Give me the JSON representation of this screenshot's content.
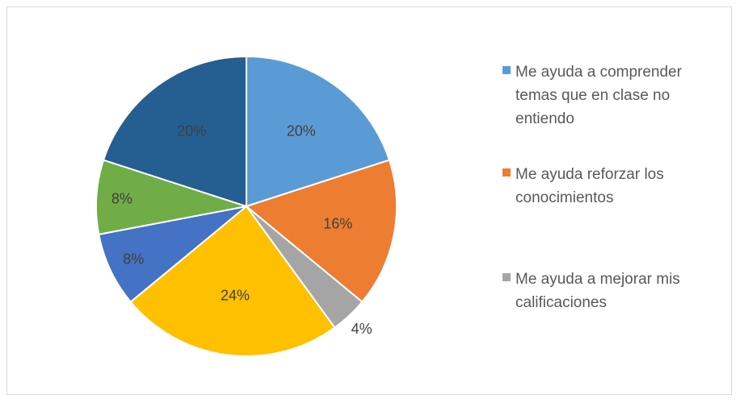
{
  "chart_data": {
    "type": "pie",
    "title": "",
    "slices": [
      {
        "label": "Me ayuda a comprender temas que en clase no entiendo",
        "value": 20,
        "display": "20%",
        "color": "#5B9BD5"
      },
      {
        "label": "Me ayuda reforzar los conocimientos",
        "value": 16,
        "display": "16%",
        "color": "#ED7D31"
      },
      {
        "label": "Me ayuda a mejorar mis calificaciones",
        "value": 4,
        "display": "4%",
        "color": "#A5A5A5"
      },
      {
        "label": "",
        "value": 24,
        "display": "24%",
        "color": "#FFC000"
      },
      {
        "label": "",
        "value": 8,
        "display": "8%",
        "color": "#4472C4"
      },
      {
        "label": "",
        "value": 8,
        "display": "8%",
        "color": "#70AD47"
      },
      {
        "label": "",
        "value": 20,
        "display": "20%",
        "color": "#255E91"
      }
    ],
    "legend_position": "right"
  },
  "legend": {
    "items": [
      {
        "label": "Me ayuda a comprender temas que en clase no entiendo",
        "color": "#5B9BD5"
      },
      {
        "label": "Me ayuda reforzar los conocimientos",
        "color": "#ED7D31"
      },
      {
        "label": "Me ayuda a mejorar mis calificaciones",
        "color": "#A5A5A5"
      }
    ]
  }
}
